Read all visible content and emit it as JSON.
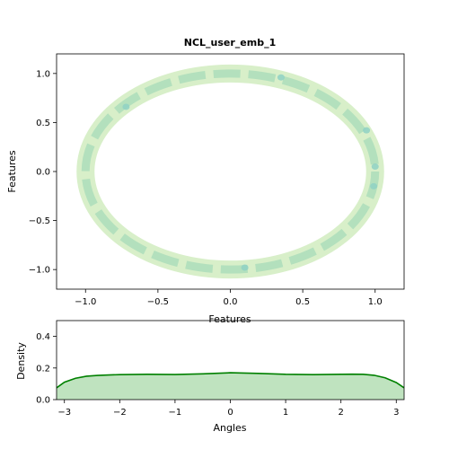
{
  "chart_data": [
    {
      "type": "density-contour",
      "title": "NCL_user_emb_1",
      "xlabel": "Features",
      "ylabel": "Features",
      "xlim": [
        -1.2,
        1.2
      ],
      "ylim": [
        -1.2,
        1.2
      ],
      "xticks": [
        -1.0,
        -0.5,
        0.0,
        0.5,
        1.0
      ],
      "xtick_labels": [
        "−1.0",
        "−0.5",
        "0.0",
        "0.5",
        "1.0"
      ],
      "yticks": [
        -1.0,
        -0.5,
        0.0,
        0.5,
        1.0
      ],
      "ytick_labels": [
        "−1.0",
        "−0.5",
        "0.0",
        "0.5",
        "1.0"
      ],
      "ring": {
        "center": [
          0.0,
          0.0
        ],
        "radius": 1.0
      },
      "hotspots": [
        {
          "x": 1.0,
          "y": 0.05
        },
        {
          "x": 0.99,
          "y": -0.15
        },
        {
          "x": 0.94,
          "y": 0.42
        },
        {
          "x": 0.1,
          "y": -0.98
        },
        {
          "x": 0.35,
          "y": 0.96
        },
        {
          "x": -0.72,
          "y": 0.66
        }
      ],
      "colors": {
        "outer": "#d8efc9",
        "mid": "#b3e0bd",
        "inner": "#8fd1c4"
      }
    },
    {
      "type": "area",
      "xlabel": "Angles",
      "ylabel": "Density",
      "xlim": [
        -3.14159,
        3.14159
      ],
      "ylim": [
        0,
        0.5
      ],
      "xticks": [
        -3,
        -2,
        -1,
        0,
        1,
        2,
        3
      ],
      "xtick_labels": [
        "−3",
        "−2",
        "−1",
        "0",
        "1",
        "2",
        "3"
      ],
      "yticks": [
        0.0,
        0.2,
        0.4
      ],
      "ytick_labels": [
        "0.0",
        "0.2",
        "0.4"
      ],
      "x": [
        -3.14,
        -3.0,
        -2.8,
        -2.6,
        -2.4,
        -2.2,
        -2.0,
        -1.5,
        -1.0,
        -0.5,
        0.0,
        0.5,
        1.0,
        1.5,
        2.0,
        2.2,
        2.4,
        2.6,
        2.8,
        3.0,
        3.14
      ],
      "y": [
        0.075,
        0.11,
        0.135,
        0.148,
        0.153,
        0.156,
        0.158,
        0.16,
        0.159,
        0.163,
        0.17,
        0.166,
        0.16,
        0.158,
        0.16,
        0.161,
        0.16,
        0.154,
        0.138,
        0.108,
        0.075
      ],
      "line_color": "#008000",
      "fill_color": "#bfe3bf"
    }
  ]
}
